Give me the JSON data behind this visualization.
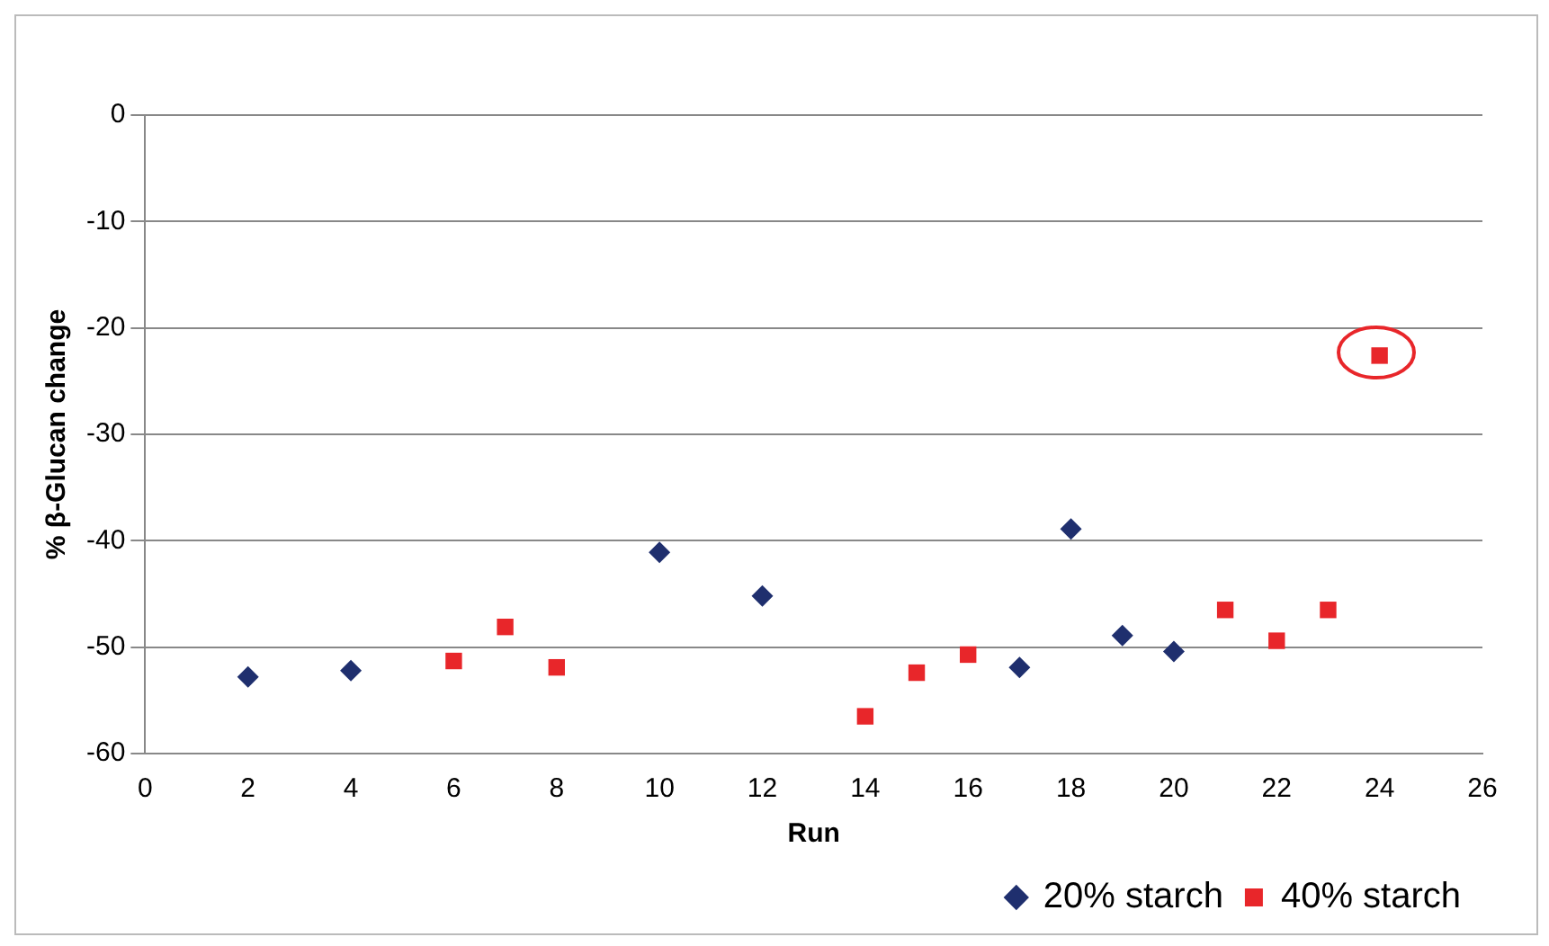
{
  "chart_data": {
    "type": "scatter",
    "xlabel": "Run",
    "ylabel": "% β-Glucan change",
    "xlim": [
      0,
      26
    ],
    "xticks": [
      0,
      2,
      4,
      6,
      8,
      10,
      12,
      14,
      16,
      18,
      20,
      22,
      24,
      26
    ],
    "ylim": [
      -60,
      0
    ],
    "yticks": [
      -60,
      -50,
      -40,
      -30,
      -20,
      -10,
      0
    ],
    "grid": "y",
    "legend": "bottom right",
    "series": [
      {
        "name": "20% starch",
        "color": "#1f2f6e",
        "marker": "diamond",
        "x": [
          2,
          4,
          10,
          12,
          17,
          18,
          19,
          20
        ],
        "values": [
          -52.8,
          -52.2,
          -41.1,
          -45.2,
          -51.9,
          -38.9,
          -48.9,
          -50.4
        ]
      },
      {
        "name": "40% starch",
        "color": "#e8262a",
        "marker": "square",
        "x": [
          6,
          7,
          8,
          14,
          15,
          16,
          21,
          22,
          23,
          24
        ],
        "values": [
          -51.3,
          -48.1,
          -51.9,
          -56.5,
          -52.4,
          -50.7,
          -46.5,
          -49.4,
          -46.5,
          -22.6
        ]
      }
    ]
  }
}
